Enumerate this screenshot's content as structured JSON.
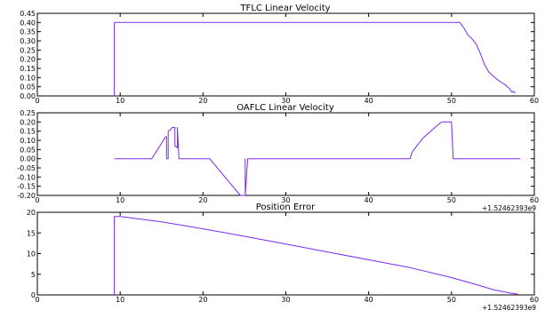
{
  "page": {
    "background": "#ffffff",
    "line_color": "#7a2af0"
  },
  "chart_data": [
    {
      "type": "line",
      "title": "TFLC Linear Velocity",
      "xlabel": "",
      "ylabel": "",
      "x_offset_label": "",
      "xlim": [
        0,
        60
      ],
      "ylim": [
        0,
        0.45
      ],
      "xticks": [
        0,
        10,
        20,
        30,
        40,
        50,
        60
      ],
      "xtick_labels": [
        "0",
        "10",
        "20",
        "30",
        "40",
        "50",
        "60"
      ],
      "yticks": [
        0.0,
        0.05,
        0.1,
        0.15,
        0.2,
        0.25,
        0.3,
        0.35,
        0.4,
        0.45
      ],
      "ytick_labels": [
        "0.00",
        "0.05",
        "0.10",
        "0.15",
        "0.20",
        "0.25",
        "0.30",
        "0.35",
        "0.40",
        "0.45"
      ],
      "grid": false,
      "series": [
        {
          "color": "#7a2af0",
          "x": [
            9.3,
            9.3,
            9.3,
            51.0,
            51.5,
            52.0,
            52.5,
            53.0,
            53.5,
            54.0,
            54.5,
            55.0,
            55.5,
            56.0,
            56.5,
            57.0,
            57.3,
            57.5,
            57.7
          ],
          "y": [
            0.0,
            0.4,
            0.4,
            0.4,
            0.37,
            0.33,
            0.31,
            0.28,
            0.23,
            0.17,
            0.13,
            0.11,
            0.09,
            0.075,
            0.06,
            0.04,
            0.02,
            0.025,
            0.015
          ]
        }
      ]
    },
    {
      "type": "line",
      "title": "OAFLC Linear Velocity",
      "xlabel": "",
      "ylabel": "",
      "x_offset_label": "+1.52462393e9",
      "xlim": [
        0,
        60
      ],
      "ylim": [
        -0.2,
        0.25
      ],
      "xticks": [
        0,
        10,
        20,
        30,
        40,
        50,
        60
      ],
      "xtick_labels": [
        "0",
        "10",
        "20",
        "30",
        "40",
        "50",
        "60"
      ],
      "yticks": [
        -0.2,
        -0.15,
        -0.1,
        -0.05,
        0.0,
        0.05,
        0.1,
        0.15,
        0.2,
        0.25
      ],
      "ytick_labels": [
        "-0.20",
        "-0.15",
        "-0.10",
        "-0.05",
        "0.00",
        "0.05",
        "0.10",
        "0.15",
        "0.20",
        "0.25"
      ],
      "grid": false,
      "series": [
        {
          "color": "#7a2af0",
          "x": [
            9.3,
            13.8,
            15.5,
            15.6,
            15.6,
            15.8,
            15.8,
            16.1,
            16.3,
            16.6,
            16.6,
            16.9,
            16.9,
            17.1,
            17.1,
            20.8,
            24.5,
            25.1,
            25.1,
            25.1,
            25.4,
            45.0,
            45.2,
            45.3,
            46.5,
            48.0,
            48.8,
            50.0,
            50.0,
            50.2,
            58.3
          ],
          "y": [
            0.0,
            0.0,
            0.12,
            0.12,
            0.0,
            0.0,
            0.15,
            0.16,
            0.17,
            0.17,
            0.07,
            0.06,
            0.17,
            0.0,
            0.0,
            0.0,
            -0.2,
            -0.2,
            0.0,
            -0.2,
            0.0,
            0.0,
            0.03,
            0.04,
            0.11,
            0.17,
            0.2,
            0.2,
            0.2,
            0.0,
            0.0
          ]
        }
      ]
    },
    {
      "type": "line",
      "title": "Position Error",
      "xlabel": "",
      "ylabel": "",
      "x_offset_label": "+1.52462393e9",
      "xlim": [
        0,
        60
      ],
      "ylim": [
        0,
        20
      ],
      "xticks": [
        0,
        10,
        20,
        30,
        40,
        50,
        60
      ],
      "xtick_labels": [
        "0",
        "10",
        "20",
        "30",
        "40",
        "50",
        "60"
      ],
      "yticks": [
        0,
        5,
        10,
        15,
        20
      ],
      "ytick_labels": [
        "0",
        "5",
        "10",
        "15",
        "20"
      ],
      "grid": false,
      "series": [
        {
          "color": "#7a2af0",
          "x": [
            9.3,
            9.3,
            10.0,
            15.0,
            20.0,
            25.0,
            30.0,
            35.0,
            40.0,
            45.0,
            50.0,
            53.0,
            55.0,
            57.0,
            58.0
          ],
          "y": [
            0.0,
            19.0,
            19.0,
            17.7,
            16.0,
            14.2,
            12.3,
            10.4,
            8.5,
            6.6,
            4.2,
            2.5,
            1.3,
            0.5,
            0.2
          ]
        }
      ]
    }
  ]
}
